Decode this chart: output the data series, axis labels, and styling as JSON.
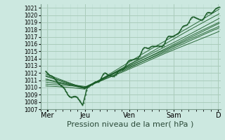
{
  "background_color": "#cce8e0",
  "grid_major_color": "#aaccbb",
  "grid_minor_color": "#bbddd0",
  "line_color": "#1a5c28",
  "xlim": [
    0,
    4.05
  ],
  "ylim": [
    1007,
    1021.5
  ],
  "yticks": [
    1007,
    1008,
    1009,
    1010,
    1011,
    1012,
    1013,
    1014,
    1015,
    1016,
    1017,
    1018,
    1019,
    1020,
    1021
  ],
  "xtick_positions": [
    0.15,
    1.0,
    2.0,
    3.0,
    4.0
  ],
  "xtick_labels": [
    "Mer",
    "Jeu",
    "Ven",
    "Sam",
    "D"
  ],
  "xlabel": "Pression niveau de la mer( hPa )",
  "xlabel_fontsize": 8,
  "ytick_fontsize": 5.5,
  "xtick_fontsize": 7,
  "start_x": 0.12,
  "converge_x": 1.0,
  "end_x": 4.02,
  "start_pressures": [
    1012.0,
    1011.8,
    1011.5,
    1011.2,
    1010.8,
    1010.5,
    1010.2,
    1011.0,
    1011.6
  ],
  "converge_pressures": [
    1009.8,
    1009.9,
    1009.9,
    1010.0,
    1010.1,
    1010.0,
    1009.8,
    1009.9,
    1010.0
  ],
  "end_pressures": [
    1021.3,
    1020.8,
    1019.5,
    1018.8,
    1018.2,
    1019.0,
    1020.2,
    1018.5,
    1017.8
  ]
}
